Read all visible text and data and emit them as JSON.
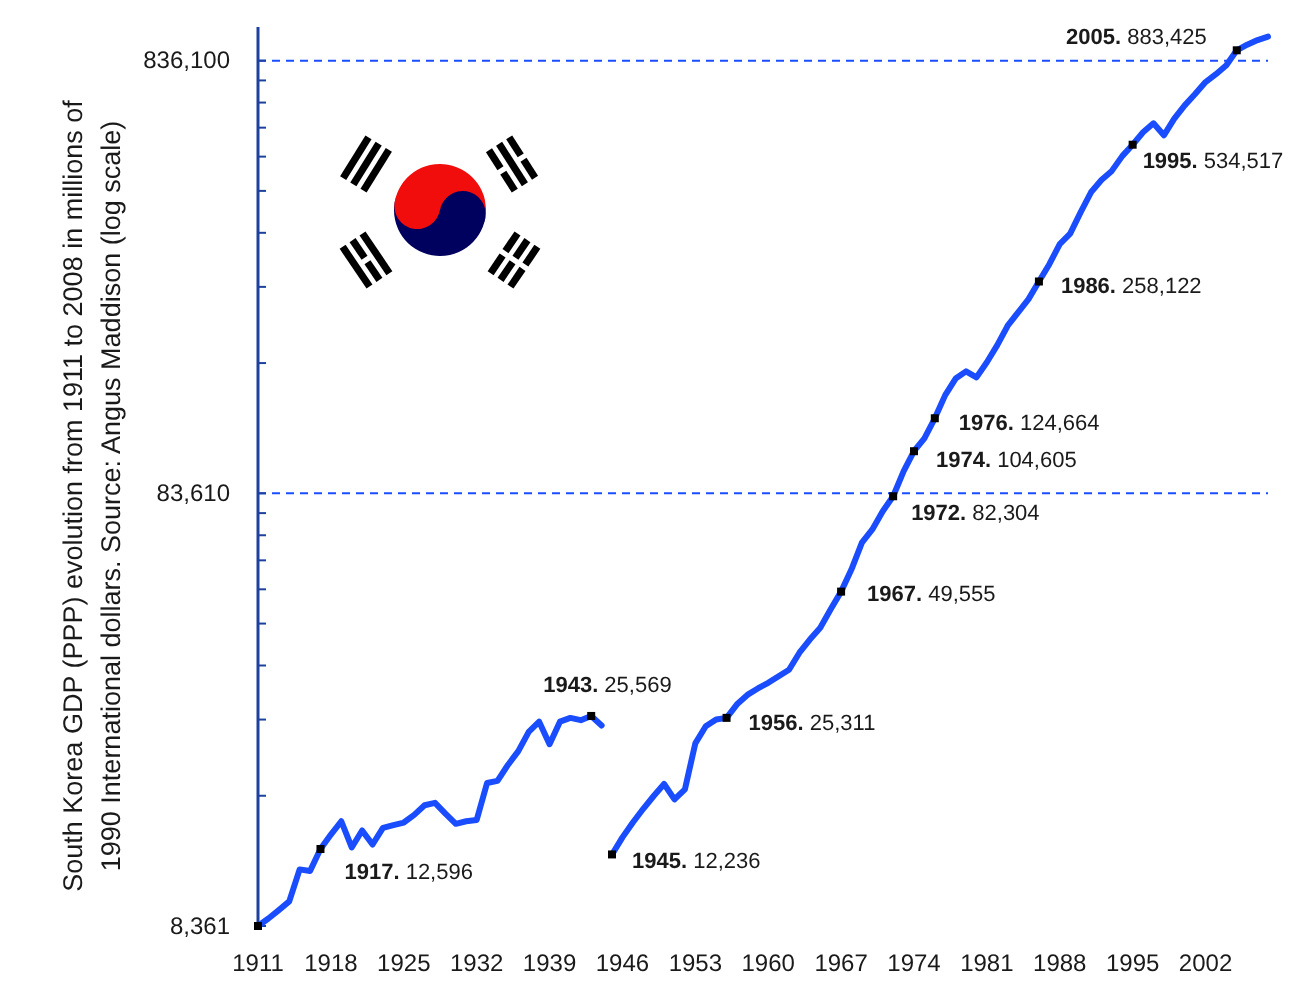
{
  "chart_data": {
    "type": "line",
    "ylabel": "South Korea GDP (PPP) evolution from 1911 to 2008 in millions of 1990 International dollars. Source: Angus Maddison (log scale)",
    "log": "y",
    "xlim": [
      1911,
      2008
    ],
    "xticks": [
      1911,
      1918,
      1925,
      1932,
      1939,
      1946,
      1953,
      1960,
      1967,
      1974,
      1981,
      1988,
      1995,
      2002
    ],
    "ylim": [
      8361,
      1000000
    ],
    "yticks": [
      {
        "value": 8361,
        "label": "8,361"
      },
      {
        "value": 16722,
        "label": null
      },
      {
        "value": 25083,
        "label": null
      },
      {
        "value": 33444,
        "label": null
      },
      {
        "value": 41805,
        "label": null
      },
      {
        "value": 50166,
        "label": null
      },
      {
        "value": 58527,
        "label": null
      },
      {
        "value": 66888,
        "label": null
      },
      {
        "value": 75249,
        "label": null
      },
      {
        "value": 83610,
        "label": "83,610"
      },
      {
        "value": 167220,
        "label": null
      },
      {
        "value": 250830,
        "label": null
      },
      {
        "value": 334440,
        "label": null
      },
      {
        "value": 418050,
        "label": null
      },
      {
        "value": 501660,
        "label": null
      },
      {
        "value": 585270,
        "label": null
      },
      {
        "value": 668880,
        "label": null
      },
      {
        "value": 752490,
        "label": null
      },
      {
        "value": 836100,
        "label": "836,100"
      }
    ],
    "ref_lines": [
      {
        "axis": "y",
        "value": 83610,
        "color": "#1a4dff",
        "line_style": "dashed"
      },
      {
        "axis": "y",
        "value": 836100,
        "color": "#1a4dff",
        "line_style": "dashed"
      }
    ],
    "series": [
      {
        "color": "#1a4dff",
        "x": [
          1911,
          1912,
          1913,
          1914,
          1915,
          1916,
          1917,
          1918,
          1919,
          1920,
          1921,
          1922,
          1923,
          1924,
          1925,
          1926,
          1927,
          1928,
          1929,
          1930,
          1931,
          1932,
          1933,
          1934,
          1935,
          1936,
          1937,
          1938,
          1939,
          1940,
          1941,
          1942,
          1943,
          1944
        ],
        "values": [
          8361,
          8700,
          9100,
          9530,
          11300,
          11200,
          12596,
          13600,
          14600,
          12700,
          13900,
          12900,
          14100,
          14300,
          14500,
          15100,
          15900,
          16100,
          15200,
          14400,
          14600,
          14700,
          17900,
          18100,
          19700,
          21200,
          23500,
          24800,
          22000,
          24800,
          25300,
          25000,
          25569,
          24300
        ]
      },
      {
        "color": "#1a4dff",
        "x": [
          1945,
          1946,
          1947,
          1948,
          1949,
          1950,
          1951,
          1952,
          1953,
          1954,
          1955,
          1956,
          1957,
          1958,
          1959,
          1960,
          1961,
          1962,
          1963,
          1964,
          1965,
          1966,
          1967,
          1968,
          1969,
          1970,
          1971,
          1972,
          1973,
          1974,
          1975,
          1976,
          1977,
          1978,
          1979,
          1980,
          1981,
          1982,
          1983,
          1984,
          1985,
          1986,
          1987,
          1988,
          1989,
          1990,
          1991,
          1992,
          1993,
          1994,
          1995,
          1996,
          1997,
          1998,
          1999,
          2000,
          2001,
          2002,
          2003,
          2004,
          2005,
          2006,
          2007,
          2008
        ],
        "values": [
          12236,
          13400,
          14500,
          15600,
          16700,
          17800,
          16400,
          17300,
          22100,
          24200,
          25100,
          25311,
          27200,
          28600,
          29600,
          30500,
          31600,
          32700,
          35800,
          38400,
          40900,
          45100,
          49555,
          55800,
          64300,
          69000,
          76000,
          82304,
          94000,
          104605,
          112000,
          124664,
          141000,
          154000,
          160000,
          155000,
          168000,
          184000,
          204000,
          219000,
          235000,
          258122,
          283000,
          315000,
          333000,
          373000,
          415000,
          443000,
          465000,
          503000,
          534517,
          571000,
          599000,
          562000,
          614000,
          659000,
          700000,
          746000,
          778000,
          816000,
          883425,
          910000,
          933000,
          950000
        ]
      },
      {
        "type": "scatter",
        "marker": "square",
        "color": "#000000",
        "x": [
          1911,
          1917,
          1943,
          1945,
          1956,
          1967,
          1972,
          1974,
          1976,
          1986,
          1995,
          2005
        ],
        "values": [
          8361,
          12596,
          25569,
          12236,
          25311,
          49555,
          82304,
          104605,
          124664,
          258122,
          534517,
          883425
        ],
        "value_labels": [
          null,
          "1917. 12,596",
          "1943. 25,569",
          "1945. 12,236",
          "1956. 25,311",
          "1967. 49,555",
          "1972. 82,304",
          "1974. 104,605",
          "1976. 124,664",
          "1986. 258,122",
          "1995. 534,517",
          "2005. 883,425"
        ]
      }
    ]
  }
}
